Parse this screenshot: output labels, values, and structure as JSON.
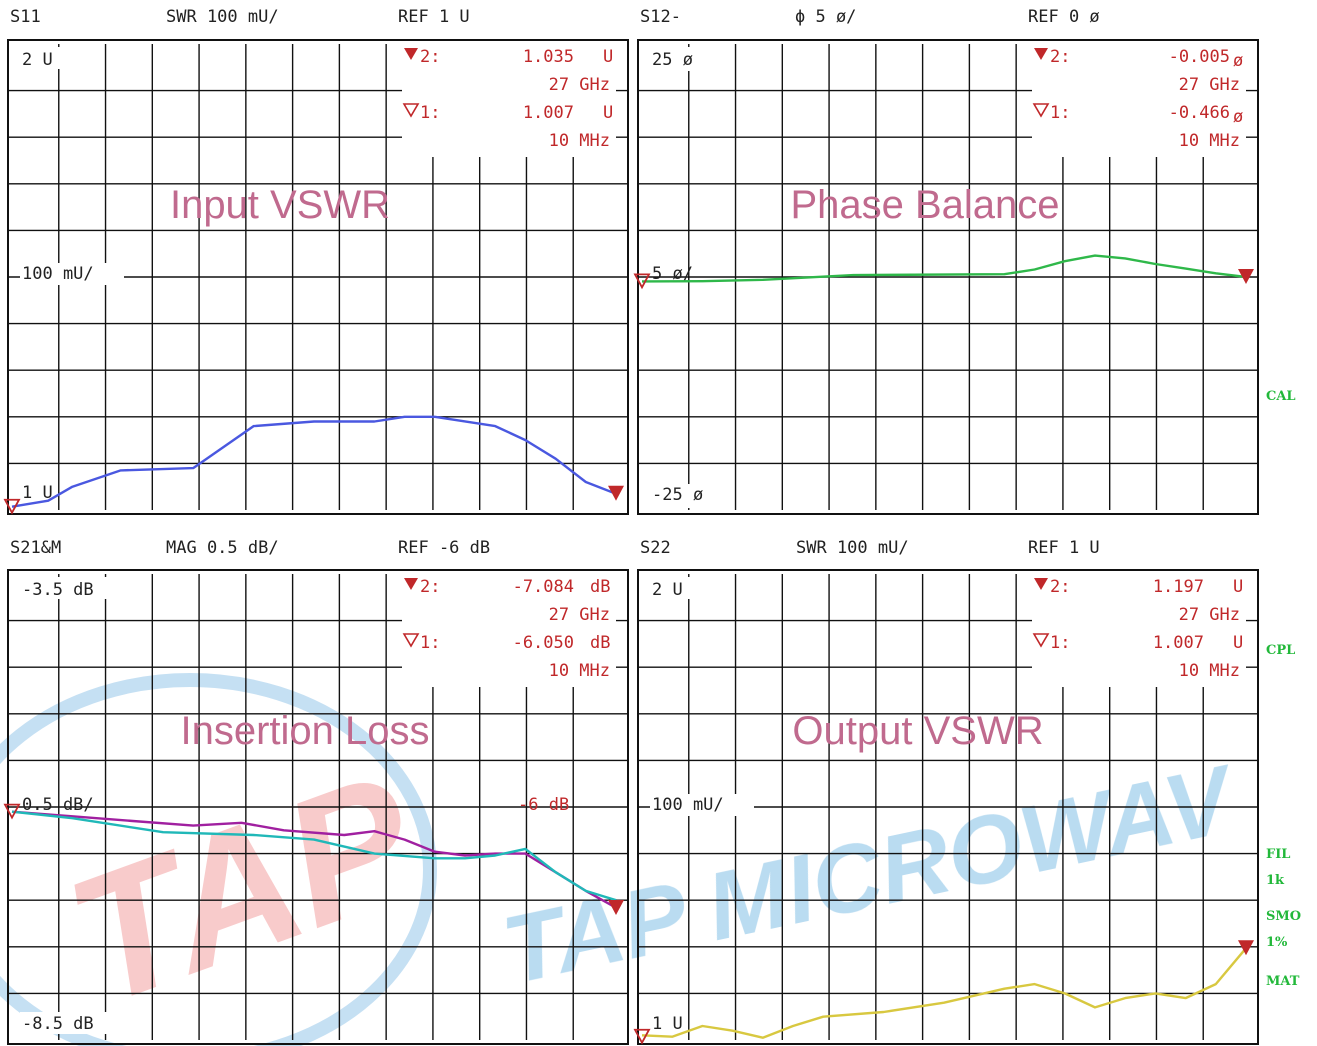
{
  "watermark": {
    "logo_text": "TAP",
    "company_text": "TAP MICROWAV"
  },
  "side_labels": [
    {
      "lines": [
        "CAL"
      ]
    },
    {
      "lines": [
        "CPL"
      ]
    },
    {
      "lines": [
        "FIL",
        "1k"
      ]
    },
    {
      "lines": [
        "SMO",
        "1%"
      ]
    },
    {
      "lines": [
        "MAT"
      ]
    }
  ],
  "chart_data": [
    {
      "type": "line",
      "title": "Input VSWR",
      "header": {
        "param": "S11",
        "format": "SWR 100 mU/",
        "ref": "REF 1 U"
      },
      "top_label": "2 U",
      "ref_label": "100 mU/",
      "bottom_label": "1 U",
      "ylim": [
        1.0,
        2.0
      ],
      "y_unit": "U",
      "x_range": [
        "10 MHz",
        "27 GHz"
      ],
      "markers": [
        {
          "id": "2:",
          "value": "1.035",
          "unit": "U",
          "freq": "27 GHz"
        },
        {
          "id": "1:",
          "value": "1.007",
          "unit": "U",
          "freq": "10 MHz"
        }
      ],
      "series": [
        {
          "color": "#4a58e0",
          "x": [
            0,
            0.06,
            0.1,
            0.18,
            0.3,
            0.4,
            0.5,
            0.6,
            0.65,
            0.7,
            0.8,
            0.85,
            0.9,
            0.95,
            1.0
          ],
          "values": [
            1.007,
            1.02,
            1.05,
            1.085,
            1.09,
            1.18,
            1.19,
            1.19,
            1.2,
            1.2,
            1.18,
            1.15,
            1.11,
            1.06,
            1.035
          ]
        }
      ]
    },
    {
      "type": "line",
      "title": "Phase Balance",
      "header": {
        "param": "S12-",
        "format": "ϕ 5 ø/",
        "ref": "REF 0 ø"
      },
      "top_label": "25 ø",
      "ref_label": "5 ø/",
      "bottom_label": "-25 ø",
      "ylim": [
        -25,
        25
      ],
      "y_unit": "ø",
      "x_range": [
        "10 MHz",
        "27 GHz"
      ],
      "markers": [
        {
          "id": "2:",
          "value": "-0.005",
          "unit": "ø",
          "freq": "27 GHz"
        },
        {
          "id": "1:",
          "value": "-0.466",
          "unit": "ø",
          "freq": "10 MHz"
        }
      ],
      "series": [
        {
          "color": "#2fb84a",
          "x": [
            0,
            0.1,
            0.2,
            0.35,
            0.6,
            0.65,
            0.7,
            0.75,
            0.8,
            0.85,
            0.9,
            0.95,
            1.0
          ],
          "values": [
            -0.47,
            -0.45,
            -0.3,
            0.2,
            0.3,
            0.8,
            1.7,
            2.3,
            2.0,
            1.4,
            0.9,
            0.4,
            -0.005
          ]
        }
      ]
    },
    {
      "type": "line",
      "title": "Insertion Loss",
      "header": {
        "param": "S21&M",
        "format": "MAG 0.5 dB/",
        "ref": "REF -6 dB"
      },
      "top_label": "-3.5 dB",
      "ref_label": "0.5 dB/",
      "bottom_label": "-8.5 dB",
      "ylim": [
        -8.5,
        -3.5
      ],
      "y_unit": "dB",
      "x_range": [
        "10 MHz",
        "27 GHz"
      ],
      "markers": [
        {
          "id": "2:",
          "value": "-7.084",
          "unit": "dB",
          "freq": "27 GHz"
        },
        {
          "id": "1:",
          "value": "-6.050",
          "unit": "dB",
          "freq": "10 MHz"
        }
      ],
      "memory_label": "-6 dB",
      "series": [
        {
          "color": "#a020a0",
          "x": [
            0,
            0.1,
            0.2,
            0.3,
            0.38,
            0.45,
            0.55,
            0.6,
            0.65,
            0.7,
            0.75,
            0.8,
            0.85,
            0.9,
            0.95,
            1.0
          ],
          "values": [
            -6.05,
            -6.1,
            -6.15,
            -6.2,
            -6.17,
            -6.25,
            -6.3,
            -6.26,
            -6.35,
            -6.48,
            -6.52,
            -6.5,
            -6.5,
            -6.7,
            -6.9,
            -7.08
          ]
        },
        {
          "color": "#20b8b8",
          "x": [
            0,
            0.1,
            0.25,
            0.4,
            0.5,
            0.6,
            0.7,
            0.75,
            0.8,
            0.85,
            0.9,
            0.95,
            1.0
          ],
          "values": [
            -6.05,
            -6.12,
            -6.27,
            -6.3,
            -6.35,
            -6.5,
            -6.55,
            -6.55,
            -6.52,
            -6.45,
            -6.7,
            -6.9,
            -7.0
          ]
        }
      ]
    },
    {
      "type": "line",
      "title": "Output VSWR",
      "header": {
        "param": "S22",
        "format": "SWR 100 mU/",
        "ref": "REF 1 U"
      },
      "top_label": "2 U",
      "ref_label": "100 mU/",
      "bottom_label": "1 U",
      "ylim": [
        1.0,
        2.0
      ],
      "y_unit": "U",
      "x_range": [
        "10 MHz",
        "27 GHz"
      ],
      "markers": [
        {
          "id": "2:",
          "value": "1.197",
          "unit": "U",
          "freq": "27 GHz"
        },
        {
          "id": "1:",
          "value": "1.007",
          "unit": "U",
          "freq": "10 MHz"
        }
      ],
      "series": [
        {
          "color": "#d8c840",
          "x": [
            0,
            0.05,
            0.1,
            0.15,
            0.2,
            0.25,
            0.3,
            0.4,
            0.5,
            0.6,
            0.65,
            0.7,
            0.75,
            0.8,
            0.85,
            0.9,
            0.95,
            1.0
          ],
          "values": [
            1.01,
            1.007,
            1.03,
            1.02,
            1.005,
            1.03,
            1.05,
            1.06,
            1.08,
            1.11,
            1.12,
            1.1,
            1.07,
            1.09,
            1.1,
            1.09,
            1.12,
            1.197
          ]
        }
      ]
    }
  ]
}
